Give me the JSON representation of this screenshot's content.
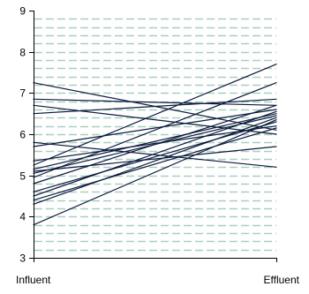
{
  "colors": {
    "background": "#ffffff",
    "gridline": "#a9cfc0",
    "axis": "#000000",
    "series": "#0d1b3e"
  },
  "chart_data": {
    "type": "line",
    "title": "",
    "xlabel": "",
    "ylabel": "",
    "categories": [
      "Influent",
      "Effluent"
    ],
    "ylim": [
      3,
      9
    ],
    "yticks": [
      "3",
      "4",
      "5",
      "6",
      "7",
      "8",
      "9"
    ],
    "grid": "horizontal dashed, every 0.2 units",
    "legend": "none",
    "series": [
      {
        "values": [
          7.25,
          6.1
        ]
      },
      {
        "values": [
          6.85,
          6.7
        ]
      },
      {
        "values": [
          6.7,
          6.0
        ]
      },
      {
        "values": [
          6.5,
          6.85
        ]
      },
      {
        "values": [
          5.8,
          5.2
        ]
      },
      {
        "values": [
          5.7,
          6.6
        ]
      },
      {
        "values": [
          5.35,
          6.2
        ]
      },
      {
        "values": [
          5.25,
          7.7
        ]
      },
      {
        "values": [
          5.15,
          6.5
        ]
      },
      {
        "values": [
          5.1,
          5.7
        ]
      },
      {
        "values": [
          5.05,
          6.45
        ]
      },
      {
        "values": [
          4.95,
          7.25
        ]
      },
      {
        "values": [
          4.8,
          6.7
        ]
      },
      {
        "values": [
          4.6,
          6.3
        ]
      },
      {
        "values": [
          4.5,
          6.55
        ]
      },
      {
        "values": [
          4.4,
          6.15
        ]
      },
      {
        "values": [
          4.3,
          6.4
        ]
      },
      {
        "values": [
          3.8,
          6.35
        ]
      }
    ]
  }
}
